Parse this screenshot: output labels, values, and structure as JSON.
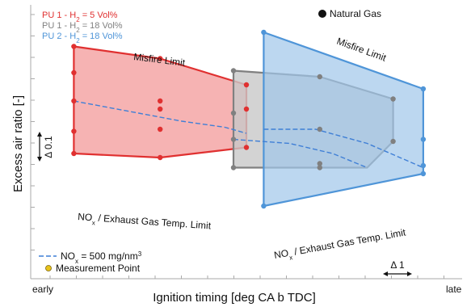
{
  "chart_data": {
    "type": "scatter",
    "xlabel": "Ignition timing [deg CA b TDC]",
    "ylabel": "Excess air ratio [-]",
    "x_tick_labels": [
      "early",
      "late"
    ],
    "xlim": [
      0,
      100
    ],
    "ylim": [
      0,
      100
    ],
    "grid": false,
    "legend_position": "top-left",
    "legend": {
      "natural_gas": "Natural Gas",
      "nox_line": "NOx = 500 mg/nm3",
      "measurement_point": "Measurement Point"
    },
    "series": [
      {
        "name": "PU 1 - H2 = 5 Vol%",
        "label_prefix": "PU 1 - H",
        "label_sub": "2",
        "label_suffix": " = 5 Vol%",
        "color": "#e03030",
        "fill": "#f5a6a6",
        "region": [
          [
            10,
            93
          ],
          [
            30,
            87
          ],
          [
            50,
            74
          ],
          [
            50,
            43
          ],
          [
            30,
            38
          ],
          [
            10,
            40
          ]
        ],
        "points": [
          [
            10,
            93
          ],
          [
            30,
            87
          ],
          [
            50,
            74
          ],
          [
            10,
            80
          ],
          [
            10,
            66
          ],
          [
            10,
            51
          ],
          [
            10,
            40
          ],
          [
            30,
            62
          ],
          [
            30,
            66
          ],
          [
            30,
            38
          ],
          [
            50,
            62
          ],
          [
            50,
            43
          ],
          [
            30,
            52
          ]
        ],
        "nox_line": [
          [
            10,
            66
          ],
          [
            25,
            60
          ],
          [
            35,
            56
          ],
          [
            45,
            53
          ],
          [
            50,
            50
          ]
        ]
      },
      {
        "name": "PU 1 - H2 = 18 Vol%",
        "label_prefix": "PU 1 - H",
        "label_sub": "2",
        "label_suffix": " = 18 Vol%",
        "color": "#808080",
        "fill": "#c8c8c8",
        "region": [
          [
            47,
            81
          ],
          [
            67,
            78
          ],
          [
            84,
            67
          ],
          [
            84,
            46
          ],
          [
            78,
            33
          ],
          [
            47,
            33
          ]
        ],
        "points": [
          [
            47,
            81
          ],
          [
            67,
            78
          ],
          [
            84,
            67
          ],
          [
            84,
            46
          ],
          [
            47,
            60
          ],
          [
            47,
            47
          ],
          [
            47,
            33
          ],
          [
            67,
            35
          ],
          [
            67,
            33
          ],
          [
            67,
            52
          ]
        ],
        "nox_line": [
          [
            47,
            47
          ],
          [
            60,
            45
          ],
          [
            70,
            40
          ],
          [
            78,
            33
          ]
        ]
      },
      {
        "name": "PU 2 - H2 = 18 Vol%",
        "label_prefix": "PU 2 - H",
        "label_sub": "2",
        "label_suffix": " = 18 Vol%",
        "color": "#4f95d8",
        "fill": "#9fc6ea",
        "region": [
          [
            54,
            100
          ],
          [
            91,
            72
          ],
          [
            91,
            30
          ],
          [
            54,
            14
          ]
        ],
        "points": [
          [
            54,
            100
          ],
          [
            91,
            72
          ],
          [
            91,
            47
          ],
          [
            91,
            34
          ],
          [
            91,
            30
          ],
          [
            54,
            14
          ]
        ],
        "nox_line": [
          [
            54,
            52
          ],
          [
            66,
            52
          ],
          [
            78,
            45
          ],
          [
            91,
            33
          ]
        ]
      }
    ],
    "annotations": {
      "misfire_left": "Misfire Limit",
      "misfire_right": "Misfire Limit",
      "nox_left_pre": "NO",
      "nox_left_sub": "x",
      "nox_left_post": " / Exhaust Gas Temp. Limit",
      "nox_right_pre": "NO",
      "nox_right_sub": "x",
      "nox_right_post": " / Exhaust Gas Temp. Limit",
      "nox_legend_pre": "NO",
      "nox_legend_sub": "x",
      "nox_legend_post": " = 500 mg/nm",
      "nox_legend_sup": "3",
      "delta_y": "Δ 0.1",
      "delta_x": "Δ 1"
    }
  }
}
